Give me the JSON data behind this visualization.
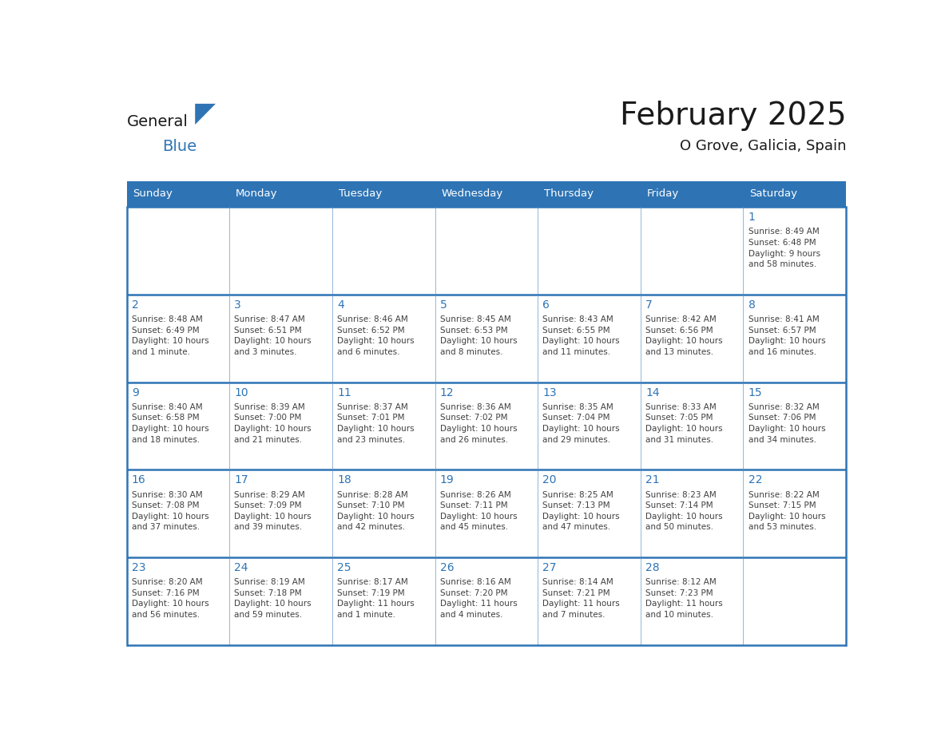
{
  "title": "February 2025",
  "subtitle": "O Grove, Galicia, Spain",
  "days_of_week": [
    "Sunday",
    "Monday",
    "Tuesday",
    "Wednesday",
    "Thursday",
    "Friday",
    "Saturday"
  ],
  "header_bg": "#2E74B5",
  "header_text": "#FFFFFF",
  "cell_bg": "#FFFFFF",
  "row_border_color": "#2E74B5",
  "day_num_color": "#2E74B5",
  "cell_text_color": "#404040",
  "title_color": "#1A1A1A",
  "subtitle_color": "#1A1A1A",
  "logo_black": "#1A1A1A",
  "logo_blue": "#2E74B5",
  "triangle_color": "#2E74B5",
  "weeks": [
    [
      {
        "day": null,
        "info": null
      },
      {
        "day": null,
        "info": null
      },
      {
        "day": null,
        "info": null
      },
      {
        "day": null,
        "info": null
      },
      {
        "day": null,
        "info": null
      },
      {
        "day": null,
        "info": null
      },
      {
        "day": 1,
        "info": "Sunrise: 8:49 AM\nSunset: 6:48 PM\nDaylight: 9 hours\nand 58 minutes."
      }
    ],
    [
      {
        "day": 2,
        "info": "Sunrise: 8:48 AM\nSunset: 6:49 PM\nDaylight: 10 hours\nand 1 minute."
      },
      {
        "day": 3,
        "info": "Sunrise: 8:47 AM\nSunset: 6:51 PM\nDaylight: 10 hours\nand 3 minutes."
      },
      {
        "day": 4,
        "info": "Sunrise: 8:46 AM\nSunset: 6:52 PM\nDaylight: 10 hours\nand 6 minutes."
      },
      {
        "day": 5,
        "info": "Sunrise: 8:45 AM\nSunset: 6:53 PM\nDaylight: 10 hours\nand 8 minutes."
      },
      {
        "day": 6,
        "info": "Sunrise: 8:43 AM\nSunset: 6:55 PM\nDaylight: 10 hours\nand 11 minutes."
      },
      {
        "day": 7,
        "info": "Sunrise: 8:42 AM\nSunset: 6:56 PM\nDaylight: 10 hours\nand 13 minutes."
      },
      {
        "day": 8,
        "info": "Sunrise: 8:41 AM\nSunset: 6:57 PM\nDaylight: 10 hours\nand 16 minutes."
      }
    ],
    [
      {
        "day": 9,
        "info": "Sunrise: 8:40 AM\nSunset: 6:58 PM\nDaylight: 10 hours\nand 18 minutes."
      },
      {
        "day": 10,
        "info": "Sunrise: 8:39 AM\nSunset: 7:00 PM\nDaylight: 10 hours\nand 21 minutes."
      },
      {
        "day": 11,
        "info": "Sunrise: 8:37 AM\nSunset: 7:01 PM\nDaylight: 10 hours\nand 23 minutes."
      },
      {
        "day": 12,
        "info": "Sunrise: 8:36 AM\nSunset: 7:02 PM\nDaylight: 10 hours\nand 26 minutes."
      },
      {
        "day": 13,
        "info": "Sunrise: 8:35 AM\nSunset: 7:04 PM\nDaylight: 10 hours\nand 29 minutes."
      },
      {
        "day": 14,
        "info": "Sunrise: 8:33 AM\nSunset: 7:05 PM\nDaylight: 10 hours\nand 31 minutes."
      },
      {
        "day": 15,
        "info": "Sunrise: 8:32 AM\nSunset: 7:06 PM\nDaylight: 10 hours\nand 34 minutes."
      }
    ],
    [
      {
        "day": 16,
        "info": "Sunrise: 8:30 AM\nSunset: 7:08 PM\nDaylight: 10 hours\nand 37 minutes."
      },
      {
        "day": 17,
        "info": "Sunrise: 8:29 AM\nSunset: 7:09 PM\nDaylight: 10 hours\nand 39 minutes."
      },
      {
        "day": 18,
        "info": "Sunrise: 8:28 AM\nSunset: 7:10 PM\nDaylight: 10 hours\nand 42 minutes."
      },
      {
        "day": 19,
        "info": "Sunrise: 8:26 AM\nSunset: 7:11 PM\nDaylight: 10 hours\nand 45 minutes."
      },
      {
        "day": 20,
        "info": "Sunrise: 8:25 AM\nSunset: 7:13 PM\nDaylight: 10 hours\nand 47 minutes."
      },
      {
        "day": 21,
        "info": "Sunrise: 8:23 AM\nSunset: 7:14 PM\nDaylight: 10 hours\nand 50 minutes."
      },
      {
        "day": 22,
        "info": "Sunrise: 8:22 AM\nSunset: 7:15 PM\nDaylight: 10 hours\nand 53 minutes."
      }
    ],
    [
      {
        "day": 23,
        "info": "Sunrise: 8:20 AM\nSunset: 7:16 PM\nDaylight: 10 hours\nand 56 minutes."
      },
      {
        "day": 24,
        "info": "Sunrise: 8:19 AM\nSunset: 7:18 PM\nDaylight: 10 hours\nand 59 minutes."
      },
      {
        "day": 25,
        "info": "Sunrise: 8:17 AM\nSunset: 7:19 PM\nDaylight: 11 hours\nand 1 minute."
      },
      {
        "day": 26,
        "info": "Sunrise: 8:16 AM\nSunset: 7:20 PM\nDaylight: 11 hours\nand 4 minutes."
      },
      {
        "day": 27,
        "info": "Sunrise: 8:14 AM\nSunset: 7:21 PM\nDaylight: 11 hours\nand 7 minutes."
      },
      {
        "day": 28,
        "info": "Sunrise: 8:12 AM\nSunset: 7:23 PM\nDaylight: 11 hours\nand 10 minutes."
      },
      {
        "day": null,
        "info": null
      }
    ]
  ]
}
